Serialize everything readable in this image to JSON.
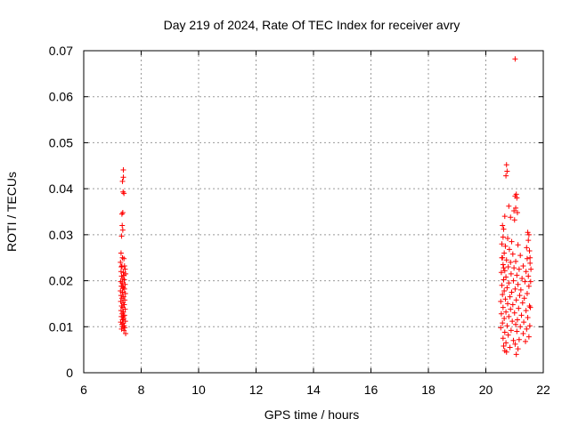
{
  "chart_data": {
    "type": "scatter",
    "title": "Day 219 of 2024, Rate Of TEC Index for receiver avry",
    "xlabel": "GPS time / hours",
    "ylabel": "ROTI / TECUs",
    "xlim": [
      6,
      22
    ],
    "ylim": [
      0,
      0.07
    ],
    "x_ticks": [
      "6",
      "8",
      "10",
      "12",
      "14",
      "16",
      "18",
      "20",
      "22"
    ],
    "y_ticks": [
      "0",
      "0.01",
      "0.02",
      "0.03",
      "0.04",
      "0.05",
      "0.06",
      "0.07"
    ],
    "grid": true,
    "marker": "+",
    "color": "#ff0000",
    "points": [
      [
        7.38,
        0.0441
      ],
      [
        7.38,
        0.0425
      ],
      [
        7.35,
        0.0416
      ],
      [
        7.37,
        0.0393
      ],
      [
        7.4,
        0.039
      ],
      [
        7.33,
        0.0345
      ],
      [
        7.36,
        0.0348
      ],
      [
        7.34,
        0.032
      ],
      [
        7.36,
        0.031
      ],
      [
        7.32,
        0.0297
      ],
      [
        7.3,
        0.026
      ],
      [
        7.35,
        0.025
      ],
      [
        7.4,
        0.0248
      ],
      [
        7.42,
        0.0232
      ],
      [
        7.28,
        0.024
      ],
      [
        7.33,
        0.0232
      ],
      [
        7.44,
        0.0225
      ],
      [
        7.3,
        0.022
      ],
      [
        7.38,
        0.0218
      ],
      [
        7.46,
        0.0215
      ],
      [
        7.32,
        0.021
      ],
      [
        7.36,
        0.0205
      ],
      [
        7.41,
        0.0202
      ],
      [
        7.29,
        0.0198
      ],
      [
        7.34,
        0.0195
      ],
      [
        7.44,
        0.0192
      ],
      [
        7.31,
        0.0188
      ],
      [
        7.38,
        0.0185
      ],
      [
        7.42,
        0.0182
      ],
      [
        7.28,
        0.0178
      ],
      [
        7.35,
        0.0175
      ],
      [
        7.45,
        0.0172
      ],
      [
        7.3,
        0.0168
      ],
      [
        7.39,
        0.0165
      ],
      [
        7.33,
        0.0162
      ],
      [
        7.43,
        0.0158
      ],
      [
        7.29,
        0.0155
      ],
      [
        7.37,
        0.0152
      ],
      [
        7.41,
        0.0148
      ],
      [
        7.32,
        0.0145
      ],
      [
        7.36,
        0.0142
      ],
      [
        7.44,
        0.0138
      ],
      [
        7.3,
        0.0135
      ],
      [
        7.38,
        0.0132
      ],
      [
        7.34,
        0.0128
      ],
      [
        7.42,
        0.0125
      ],
      [
        7.31,
        0.0122
      ],
      [
        7.39,
        0.0118
      ],
      [
        7.35,
        0.0115
      ],
      [
        7.45,
        0.0112
      ],
      [
        7.29,
        0.011
      ],
      [
        7.37,
        0.0108
      ],
      [
        7.33,
        0.0105
      ],
      [
        7.41,
        0.0102
      ],
      [
        7.36,
        0.01
      ],
      [
        7.43,
        0.0098
      ],
      [
        7.32,
        0.0095
      ],
      [
        7.4,
        0.0092
      ],
      [
        7.46,
        0.0085
      ],
      [
        7.38,
        0.0122
      ],
      [
        7.34,
        0.0188
      ],
      [
        7.4,
        0.0212
      ],
      [
        7.31,
        0.023
      ],
      [
        21.02,
        0.0682
      ],
      [
        20.72,
        0.0452
      ],
      [
        20.74,
        0.0438
      ],
      [
        20.7,
        0.0428
      ],
      [
        21.06,
        0.0388
      ],
      [
        21.02,
        0.0384
      ],
      [
        21.08,
        0.038
      ],
      [
        20.8,
        0.0362
      ],
      [
        21.04,
        0.0358
      ],
      [
        20.98,
        0.0352
      ],
      [
        21.1,
        0.0348
      ],
      [
        20.66,
        0.034
      ],
      [
        20.86,
        0.0338
      ],
      [
        21.0,
        0.0332
      ],
      [
        20.58,
        0.032
      ],
      [
        20.62,
        0.0312
      ],
      [
        21.46,
        0.0305
      ],
      [
        21.5,
        0.03
      ],
      [
        20.6,
        0.0295
      ],
      [
        20.76,
        0.0292
      ],
      [
        21.48,
        0.0288
      ],
      [
        20.9,
        0.0285
      ],
      [
        20.56,
        0.028
      ],
      [
        21.12,
        0.0278
      ],
      [
        20.68,
        0.0275
      ],
      [
        21.42,
        0.0272
      ],
      [
        20.82,
        0.0268
      ],
      [
        21.52,
        0.0265
      ],
      [
        20.64,
        0.026
      ],
      [
        20.94,
        0.0258
      ],
      [
        21.2,
        0.0255
      ],
      [
        20.58,
        0.025
      ],
      [
        21.44,
        0.0248
      ],
      [
        20.72,
        0.0245
      ],
      [
        21.04,
        0.0242
      ],
      [
        20.86,
        0.024
      ],
      [
        21.54,
        0.0238
      ],
      [
        20.6,
        0.0235
      ],
      [
        21.3,
        0.0232
      ],
      [
        20.78,
        0.023
      ],
      [
        20.98,
        0.0228
      ],
      [
        21.16,
        0.0225
      ],
      [
        20.66,
        0.0222
      ],
      [
        21.4,
        0.022
      ],
      [
        20.54,
        0.0218
      ],
      [
        20.88,
        0.0215
      ],
      [
        21.08,
        0.0212
      ],
      [
        21.48,
        0.021
      ],
      [
        20.7,
        0.0208
      ],
      [
        21.26,
        0.0205
      ],
      [
        20.62,
        0.0202
      ],
      [
        20.96,
        0.02
      ],
      [
        21.36,
        0.0198
      ],
      [
        20.8,
        0.0195
      ],
      [
        21.12,
        0.0192
      ],
      [
        20.56,
        0.019
      ],
      [
        21.5,
        0.0188
      ],
      [
        20.74,
        0.0185
      ],
      [
        21.02,
        0.0182
      ],
      [
        21.22,
        0.018
      ],
      [
        20.64,
        0.0178
      ],
      [
        20.9,
        0.0175
      ],
      [
        21.44,
        0.0172
      ],
      [
        20.58,
        0.017
      ],
      [
        21.18,
        0.0168
      ],
      [
        20.84,
        0.0165
      ],
      [
        21.34,
        0.0162
      ],
      [
        20.68,
        0.016
      ],
      [
        21.06,
        0.0158
      ],
      [
        20.52,
        0.0155
      ],
      [
        21.28,
        0.0152
      ],
      [
        20.76,
        0.015
      ],
      [
        20.94,
        0.0148
      ],
      [
        21.52,
        0.0145
      ],
      [
        20.6,
        0.0142
      ],
      [
        21.14,
        0.014
      ],
      [
        20.86,
        0.0138
      ],
      [
        21.4,
        0.0135
      ],
      [
        20.7,
        0.0132
      ],
      [
        21.0,
        0.013
      ],
      [
        20.54,
        0.0128
      ],
      [
        21.24,
        0.0125
      ],
      [
        20.8,
        0.0122
      ],
      [
        21.46,
        0.012
      ],
      [
        20.64,
        0.0118
      ],
      [
        21.1,
        0.0115
      ],
      [
        20.92,
        0.0112
      ],
      [
        21.32,
        0.011
      ],
      [
        20.58,
        0.0108
      ],
      [
        21.04,
        0.0105
      ],
      [
        20.74,
        0.0102
      ],
      [
        21.2,
        0.01
      ],
      [
        20.52,
        0.0098
      ],
      [
        21.42,
        0.0095
      ],
      [
        20.88,
        0.0092
      ],
      [
        21.08,
        0.009
      ],
      [
        20.66,
        0.0088
      ],
      [
        21.3,
        0.0085
      ],
      [
        20.78,
        0.0082
      ],
      [
        21.5,
        0.0078
      ],
      [
        20.6,
        0.0075
      ],
      [
        21.16,
        0.0072
      ],
      [
        20.96,
        0.007
      ],
      [
        21.38,
        0.0068
      ],
      [
        20.7,
        0.0065
      ],
      [
        21.02,
        0.0062
      ],
      [
        20.62,
        0.0058
      ],
      [
        20.84,
        0.0055
      ],
      [
        21.12,
        0.0052
      ],
      [
        20.66,
        0.0048
      ],
      [
        20.72,
        0.0045
      ],
      [
        21.06,
        0.004
      ],
      [
        21.54,
        0.025
      ],
      [
        21.56,
        0.0198
      ],
      [
        21.55,
        0.0142
      ],
      [
        21.53,
        0.0102
      ],
      [
        21.57,
        0.0225
      ],
      [
        20.62,
        0.0228
      ],
      [
        20.56,
        0.025
      ]
    ]
  }
}
